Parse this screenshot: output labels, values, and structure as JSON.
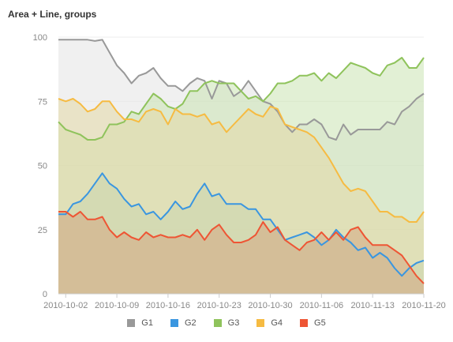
{
  "chart_data": {
    "type": "area",
    "title": "Area + Line, groups",
    "xlabel": "",
    "ylabel": "",
    "ylim": [
      0,
      100
    ],
    "y_ticks": [
      0,
      25,
      50,
      75,
      100
    ],
    "x_tick_labels": [
      "2010-10-02",
      "2010-10-09",
      "2010-10-16",
      "2010-10-23",
      "2010-10-30",
      "2010-11-06",
      "2010-11-13",
      "2010-11-20"
    ],
    "dates": [
      "2010-10-01",
      "2010-10-02",
      "2010-10-03",
      "2010-10-04",
      "2010-10-05",
      "2010-10-06",
      "2010-10-07",
      "2010-10-08",
      "2010-10-09",
      "2010-10-10",
      "2010-10-11",
      "2010-10-12",
      "2010-10-13",
      "2010-10-14",
      "2010-10-15",
      "2010-10-16",
      "2010-10-17",
      "2010-10-18",
      "2010-10-19",
      "2010-10-20",
      "2010-10-21",
      "2010-10-22",
      "2010-10-23",
      "2010-10-24",
      "2010-10-25",
      "2010-10-26",
      "2010-10-27",
      "2010-10-28",
      "2010-10-29",
      "2010-10-30",
      "2010-10-31",
      "2010-11-01",
      "2010-11-02",
      "2010-11-03",
      "2010-11-04",
      "2010-11-05",
      "2010-11-06",
      "2010-11-07",
      "2010-11-08",
      "2010-11-09",
      "2010-11-10",
      "2010-11-11",
      "2010-11-12",
      "2010-11-13",
      "2010-11-14",
      "2010-11-15",
      "2010-11-16",
      "2010-11-17",
      "2010-11-18",
      "2010-11-19",
      "2010-11-20"
    ],
    "series": [
      {
        "name": "G1",
        "color": "#999999",
        "fill": "#e3e3e3",
        "values": [
          99,
          99,
          99,
          99,
          99,
          98.5,
          99,
          94,
          89,
          86,
          82,
          85,
          86,
          88,
          84,
          81,
          81,
          79,
          82,
          84,
          83,
          76,
          83,
          82,
          77,
          79,
          83,
          79,
          75,
          74,
          71,
          66,
          63,
          66,
          66,
          68,
          66,
          61,
          60,
          66,
          62,
          64,
          64,
          64,
          64,
          67,
          66,
          71,
          73,
          76,
          78
        ]
      },
      {
        "name": "G2",
        "color": "#3a96e0",
        "fill": "#8ab6c5",
        "values": [
          31,
          31,
          35,
          36,
          39,
          43,
          47,
          43,
          41,
          37,
          34,
          35,
          31,
          32,
          29,
          32,
          36,
          33,
          34,
          39,
          43,
          38,
          39,
          35,
          35,
          35,
          33,
          33,
          29,
          29,
          25,
          21,
          22,
          23,
          24,
          22,
          19,
          21,
          25,
          22,
          20,
          17,
          18,
          14,
          16,
          14,
          10,
          7,
          10,
          12,
          13
        ]
      },
      {
        "name": "G3",
        "color": "#8fc35c",
        "fill": "#cbe3b3",
        "values": [
          67,
          64,
          63,
          62,
          60,
          60,
          61,
          66,
          66,
          67,
          71,
          70,
          74,
          78,
          76,
          73,
          72,
          74,
          79,
          79,
          82,
          83,
          82,
          82,
          82,
          79,
          76,
          77,
          75,
          78,
          82,
          82,
          83,
          85,
          85,
          86,
          83,
          86,
          84,
          87,
          90,
          89,
          88,
          86,
          85,
          89,
          90,
          92,
          88,
          88,
          92
        ]
      },
      {
        "name": "G4",
        "color": "#f6bb42",
        "fill": "#e3d9a6",
        "values": [
          76,
          75,
          76,
          74,
          71,
          72,
          75,
          75,
          71,
          68,
          68,
          67,
          71,
          72,
          71,
          66,
          72,
          70,
          70,
          69,
          70,
          66,
          67,
          63,
          66,
          69,
          72,
          70,
          69,
          73,
          72,
          66,
          65,
          64,
          63,
          61,
          57,
          53,
          48,
          43,
          40,
          41,
          40,
          36,
          32,
          32,
          30,
          30,
          28,
          28,
          32
        ]
      },
      {
        "name": "G5",
        "color": "#ee5534",
        "fill": "#d4a881",
        "values": [
          32,
          32,
          30,
          32,
          29,
          29,
          30,
          25,
          22,
          24,
          22,
          21,
          24,
          22,
          23,
          22,
          22,
          23,
          22,
          25,
          21,
          25,
          27,
          23,
          20,
          20,
          21,
          23,
          28,
          24,
          26,
          21,
          19,
          17,
          20,
          21,
          24,
          21,
          24,
          21,
          25,
          26,
          22,
          19,
          19,
          19,
          17,
          15,
          11,
          7,
          4
        ]
      }
    ]
  }
}
